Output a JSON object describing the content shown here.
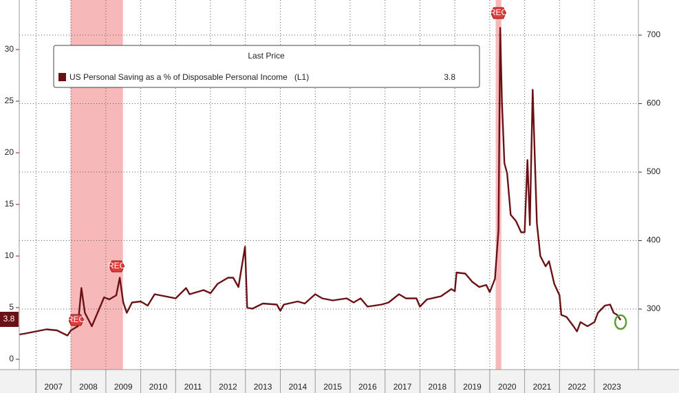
{
  "chart_data": {
    "type": "line",
    "legend_title": "Last Price",
    "legend_suffix": "(L1)",
    "last_price": 3.8,
    "series": [
      {
        "name": "US Personal Saving as a % of Disposable Personal Income",
        "color": "#6b1015",
        "x": [
          2006.52,
          2006.7,
          2007.0,
          2007.3,
          2007.6,
          2007.9,
          2008.0,
          2008.2,
          2008.3,
          2008.4,
          2008.6,
          2008.8,
          2008.95,
          2009.1,
          2009.3,
          2009.4,
          2009.5,
          2009.6,
          2009.75,
          2010.0,
          2010.2,
          2010.4,
          2010.7,
          2011.0,
          2011.3,
          2011.4,
          2011.8,
          2012.0,
          2012.2,
          2012.5,
          2012.65,
          2012.8,
          2012.99,
          2013.05,
          2013.2,
          2013.5,
          2013.9,
          2014.0,
          2014.1,
          2014.5,
          2014.7,
          2015.0,
          2015.2,
          2015.5,
          2015.9,
          2016.1,
          2016.3,
          2016.5,
          2016.9,
          2017.1,
          2017.4,
          2017.6,
          2017.9,
          2018.0,
          2018.2,
          2018.6,
          2018.9,
          2019.0,
          2019.05,
          2019.3,
          2019.5,
          2019.7,
          2019.9,
          2020.0,
          2020.15,
          2020.25,
          2020.3,
          2020.35,
          2020.42,
          2020.5,
          2020.6,
          2020.75,
          2020.9,
          2021.0,
          2021.08,
          2021.15,
          2021.23,
          2021.35,
          2021.45,
          2021.6,
          2021.7,
          2021.85,
          2022.0,
          2022.05,
          2022.2,
          2022.4,
          2022.5,
          2022.6,
          2022.8,
          2023.0,
          2023.1,
          2023.3,
          2023.45,
          2023.55,
          2023.65,
          2023.75
        ],
        "values": [
          2.4,
          2.5,
          2.7,
          2.9,
          2.8,
          2.3,
          2.8,
          3.2,
          6.9,
          4.5,
          3.2,
          4.8,
          6.0,
          5.8,
          6.2,
          7.9,
          5.5,
          4.5,
          5.5,
          5.6,
          5.2,
          6.3,
          6.1,
          5.9,
          6.9,
          6.3,
          6.7,
          6.4,
          7.3,
          7.9,
          7.9,
          7.0,
          10.9,
          5.0,
          4.9,
          5.4,
          5.3,
          4.7,
          5.3,
          5.6,
          5.4,
          6.3,
          5.9,
          5.7,
          5.9,
          5.5,
          5.9,
          5.1,
          5.3,
          5.5,
          6.3,
          5.9,
          5.9,
          5.1,
          5.8,
          6.1,
          6.8,
          6.6,
          8.4,
          8.3,
          7.5,
          7.0,
          7.2,
          6.5,
          7.8,
          12.5,
          32.1,
          25.0,
          19.0,
          18.0,
          14.0,
          13.4,
          12.3,
          12.3,
          19.3,
          13.0,
          26.1,
          13.2,
          10.0,
          9.0,
          9.5,
          7.3,
          6.2,
          4.3,
          4.1,
          3.2,
          2.7,
          3.6,
          3.2,
          3.6,
          4.5,
          5.2,
          5.3,
          4.5,
          4.3,
          3.8
        ]
      }
    ],
    "shaded_regions": [
      {
        "label": "REC",
        "start": 2007.99,
        "end": 2009.49
      },
      {
        "label": "REC",
        "start": 2020.17,
        "end": 2020.33
      }
    ],
    "xlim": [
      2006.52,
      2024.26
    ],
    "xticks": [
      {
        "value": 2007.5,
        "label": "2007"
      },
      {
        "value": 2008.5,
        "label": "2008"
      },
      {
        "value": 2009.5,
        "label": "2009"
      },
      {
        "value": 2010.5,
        "label": "2010"
      },
      {
        "value": 2011.5,
        "label": "2011"
      },
      {
        "value": 2012.5,
        "label": "2012"
      },
      {
        "value": 2013.5,
        "label": "2013"
      },
      {
        "value": 2014.5,
        "label": "2014"
      },
      {
        "value": 2015.5,
        "label": "2015"
      },
      {
        "value": 2016.5,
        "label": "2016"
      },
      {
        "value": 2017.5,
        "label": "2017"
      },
      {
        "value": 2018.5,
        "label": "2018"
      },
      {
        "value": 2019.5,
        "label": "2019"
      },
      {
        "value": 2020.5,
        "label": "2020"
      },
      {
        "value": 2021.5,
        "label": "2021"
      },
      {
        "value": 2022.5,
        "label": "2022"
      },
      {
        "value": 2023.5,
        "label": "2023"
      }
    ],
    "ylim": [
      -1,
      34.8
    ],
    "yticks": [
      0,
      5,
      10,
      15,
      20,
      25,
      30
    ],
    "y2lim": [
      211.6,
      751.3
    ],
    "y2ticks": [
      300,
      400,
      500,
      600,
      700
    ],
    "grid": true
  }
}
